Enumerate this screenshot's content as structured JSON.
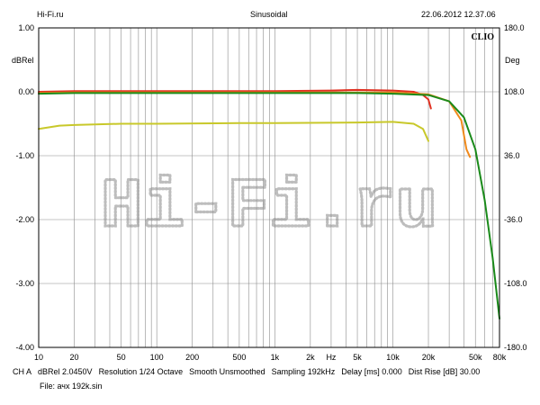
{
  "header": {
    "left": "Hi-Fi.ru",
    "center": "Sinusoidal",
    "right": "22.06.2012 12.37.06"
  },
  "brand": "CLIO",
  "watermark": "Hi-Fi.ru",
  "footer": {
    "line1": [
      "CH A",
      "dBRel 2.0450V",
      "Resolution 1/24 Octave",
      "Smooth Unsmoothed",
      "Sampling 192kHz",
      "Delay [ms] 0.000",
      "Dist Rise [dB] 30.00"
    ],
    "line2": "File: ачх 192k.sin"
  },
  "chart_data": {
    "type": "line",
    "x_scale": "log",
    "xlim": [
      10,
      80000
    ],
    "ylabel_left": "dBRel",
    "ylabel_right": "Deg",
    "xunit": "Hz",
    "ylim_left": [
      -4.0,
      1.0
    ],
    "ylim_right": [
      -180.0,
      180.0
    ],
    "grid": true,
    "left_ticks": [
      "1.00",
      "0.00",
      "-1.00",
      "-2.00",
      "-3.00",
      "-4.00"
    ],
    "left_tick_values": [
      1,
      0,
      -1,
      -2,
      -3,
      -4
    ],
    "right_ticks": [
      "180.0",
      "108.0",
      "36.0",
      "-36.0",
      "-108.0",
      "-180.0"
    ],
    "right_tick_values": [
      180,
      108,
      36,
      -36,
      -108,
      -180
    ],
    "x_ticks": [
      "10",
      "20",
      "50",
      "100",
      "200",
      "500",
      "1k",
      "2k",
      "Hz",
      "5k",
      "10k",
      "20k",
      "50k",
      "80k"
    ],
    "x_tick_values": [
      10,
      20,
      50,
      100,
      200,
      500,
      1000,
      2000,
      3000,
      5000,
      10000,
      20000,
      50000,
      80000
    ],
    "series": [
      {
        "color": "#e03020",
        "x": [
          10,
          20,
          50,
          100,
          500,
          1000,
          3000,
          5000,
          10000,
          15000,
          18000,
          20000,
          21000
        ],
        "y": [
          0.0,
          0.01,
          0.01,
          0.01,
          0.01,
          0.01,
          0.02,
          0.03,
          0.02,
          0.0,
          -0.05,
          -0.12,
          -0.26
        ]
      },
      {
        "color": "#f08a1c",
        "x": [
          10,
          20,
          50,
          100,
          500,
          1000,
          5000,
          10000,
          20000,
          30000,
          38000,
          42000,
          45000
        ],
        "y": [
          -0.02,
          -0.01,
          -0.01,
          -0.01,
          -0.01,
          -0.01,
          -0.01,
          -0.01,
          -0.04,
          -0.15,
          -0.45,
          -0.9,
          -1.02
        ]
      },
      {
        "color": "#1a8a1a",
        "x": [
          10,
          20,
          50,
          100,
          500,
          1000,
          5000,
          10000,
          20000,
          30000,
          40000,
          50000,
          60000,
          70000,
          80000
        ],
        "y": [
          -0.03,
          -0.02,
          -0.02,
          -0.02,
          -0.02,
          -0.02,
          -0.02,
          -0.03,
          -0.05,
          -0.15,
          -0.4,
          -0.9,
          -1.7,
          -2.6,
          -3.55
        ]
      },
      {
        "color": "#c8c82a",
        "x": [
          10,
          15,
          20,
          50,
          100,
          500,
          1000,
          5000,
          10000,
          15000,
          18000,
          20000
        ],
        "y": [
          -0.58,
          -0.53,
          -0.52,
          -0.5,
          -0.5,
          -0.49,
          -0.49,
          -0.48,
          -0.47,
          -0.5,
          -0.58,
          -0.77
        ]
      }
    ]
  }
}
